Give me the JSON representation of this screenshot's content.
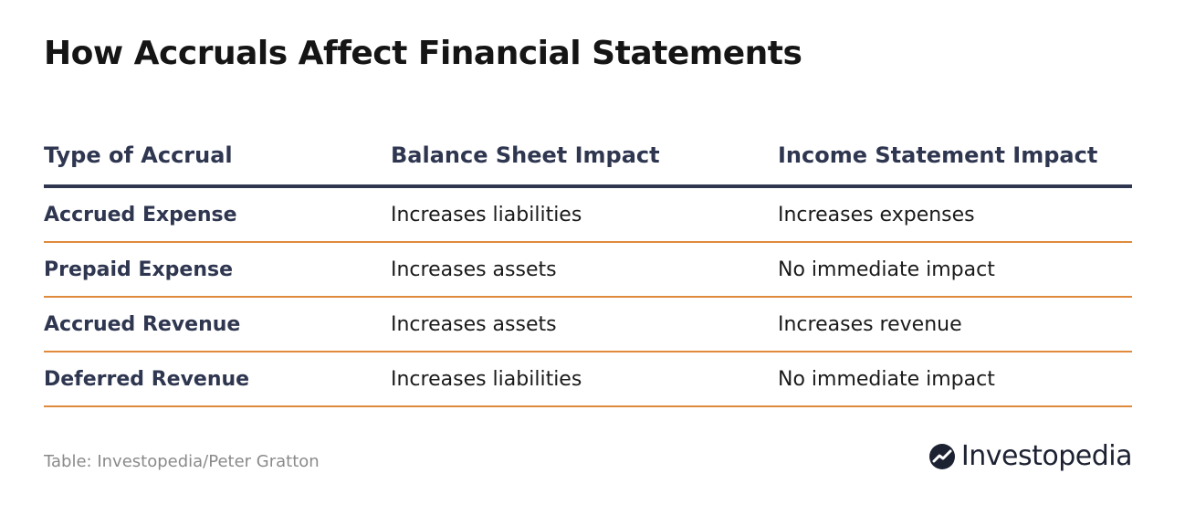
{
  "title": "How Accruals Affect Financial Statements",
  "table": {
    "headers": [
      "Type of Accrual",
      "Balance Sheet Impact",
      "Income Statement Impact"
    ],
    "rows": [
      [
        "Accrued Expense",
        "Increases liabilities",
        "Increases expenses"
      ],
      [
        "Prepaid Expense",
        "Increases assets",
        "No immediate impact"
      ],
      [
        "Accrued Revenue",
        "Increases assets",
        "Increases revenue"
      ],
      [
        "Deferred Revenue",
        "Increases liabilities",
        "No immediate impact"
      ]
    ]
  },
  "footer": {
    "source": "Table: Investopedia/Peter Gratton",
    "brand": "Investopedia"
  },
  "colors": {
    "heading_navy": "#2f3650",
    "row_divider_orange": "#e08a3c",
    "source_gray": "#8a8a8a"
  },
  "icons": {
    "brand_logo": "investopedia-logo-icon"
  }
}
